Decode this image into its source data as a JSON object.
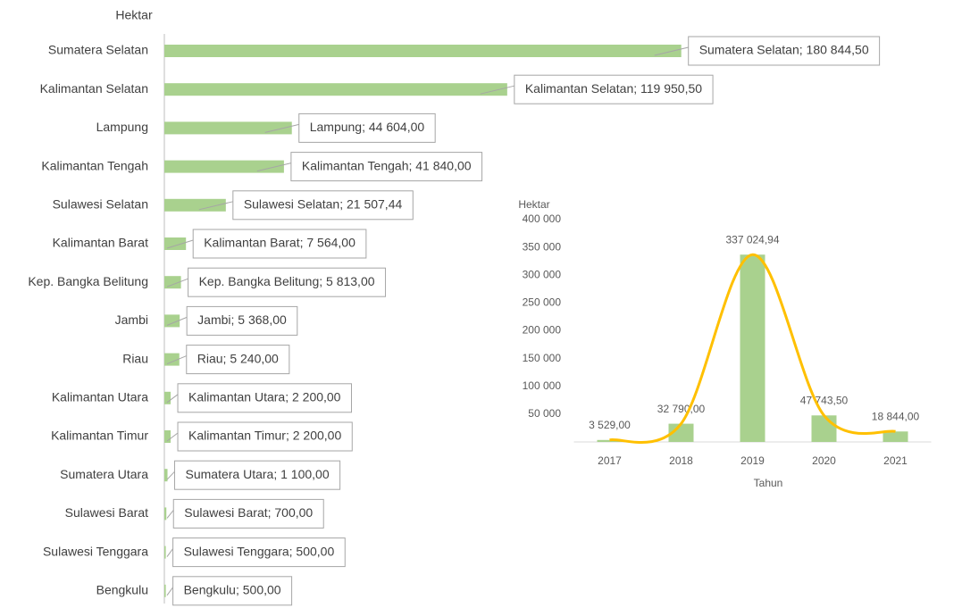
{
  "chart_data": [
    {
      "type": "barh",
      "axis_label": "Hektar",
      "categories": [
        "Sumatera Selatan",
        "Kalimantan Selatan",
        "Lampung",
        "Kalimantan Tengah",
        "Sulawesi Selatan",
        "Kalimantan Barat",
        "Kep. Bangka Belitung",
        "Jambi",
        "Riau",
        "Kalimantan Utara",
        "Kalimantan Timur",
        "Sumatera Utara",
        "Sulawesi Barat",
        "Sulawesi Tenggara",
        "Bengkulu"
      ],
      "values": [
        180844.5,
        119950.5,
        44604,
        41840,
        21507.44,
        7564,
        5813,
        5368,
        5240,
        2200,
        2200,
        1100,
        700,
        500,
        500
      ],
      "value_labels": [
        "Sumatera Selatan; 180 844,50",
        "Kalimantan Selatan; 119 950,50",
        "Lampung; 44 604,00",
        "Kalimantan Tengah; 41 840,00",
        "Sulawesi Selatan; 21 507,44",
        "Kalimantan Barat; 7 564,00",
        "Kep. Bangka Belitung; 5 813,00",
        "Jambi; 5 368,00",
        "Riau; 5 240,00",
        "Kalimantan Utara; 2 200,00",
        "Kalimantan Timur; 2 200,00",
        "Sumatera Utara; 1 100,00",
        "Sulawesi Barat; 700,00",
        "Sulawesi Tenggara; 500,00",
        "Bengkulu; 500,00"
      ],
      "color": "#a9d18e",
      "xlim": [
        0,
        200000
      ]
    },
    {
      "type": "bar_line",
      "y_label": "Hektar",
      "x_label": "Tahun",
      "categories": [
        "2017",
        "2018",
        "2019",
        "2020",
        "2021"
      ],
      "values": [
        3529,
        32790,
        337024.94,
        47743.5,
        18844
      ],
      "value_labels": [
        "3 529,00",
        "32 790,00",
        "337 024,94",
        "47 743,50",
        "18 844,00"
      ],
      "color": "#a9d18e",
      "line_color": "#ffc000",
      "smooth": true,
      "ylim": [
        0,
        400000
      ],
      "yticks": [
        {
          "value": 50000,
          "label": "50 000"
        },
        {
          "value": 100000,
          "label": "100 000"
        },
        {
          "value": 150000,
          "label": "150 000"
        },
        {
          "value": 200000,
          "label": "200 000"
        },
        {
          "value": 250000,
          "label": "250 000"
        },
        {
          "value": 300000,
          "label": "300 000"
        },
        {
          "value": 350000,
          "label": "350 000"
        },
        {
          "value": 400000,
          "label": "400 000"
        }
      ]
    }
  ]
}
